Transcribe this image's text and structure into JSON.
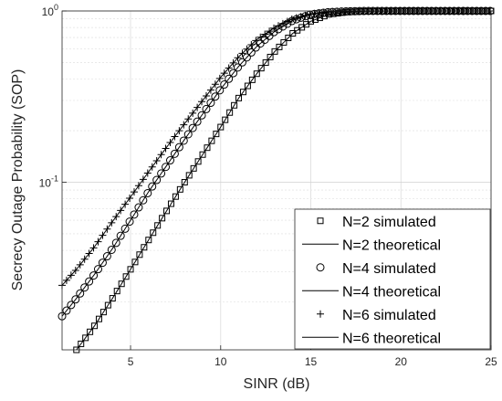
{
  "chart_data": {
    "type": "line",
    "xlabel": "SINR (dB)",
    "ylabel": "Secrecy Outage Probability (SOP)",
    "xlim": [
      1.2,
      25
    ],
    "ylim": [
      0.0105,
      1.0
    ],
    "yscale": "log",
    "grid": true,
    "legend_position": "bottom-right",
    "x_ticks": [
      "5",
      "10",
      "15",
      "20",
      "25"
    ],
    "y_ticks": [
      {
        "value": 0.1,
        "base": "10",
        "exp": "-1"
      },
      {
        "value": 1.0,
        "base": "10",
        "exp": "0"
      }
    ],
    "series": [
      {
        "name": "N=2 simulated",
        "marker": "square",
        "line": false,
        "key": "n2"
      },
      {
        "name": "N=2 theoretical",
        "marker": "none",
        "line": true,
        "key": "n2"
      },
      {
        "name": "N=4 simulated",
        "marker": "circle",
        "line": false,
        "key": "n4"
      },
      {
        "name": "N=4 theoretical",
        "marker": "none",
        "line": true,
        "key": "n4"
      },
      {
        "name": "N=6 simulated",
        "marker": "plus",
        "line": false,
        "key": "n6"
      },
      {
        "name": "N=6 theoretical",
        "marker": "none",
        "line": true,
        "key": "n6"
      }
    ],
    "curves": {
      "n2": {
        "x": [
          2.0,
          3,
          4,
          5,
          6,
          7,
          8,
          9,
          10,
          11,
          12,
          13,
          14,
          15,
          16,
          17,
          18,
          20,
          25
        ],
        "y": [
          0.0105,
          0.0145,
          0.021,
          0.031,
          0.046,
          0.068,
          0.1,
          0.145,
          0.21,
          0.31,
          0.43,
          0.58,
          0.74,
          0.87,
          0.955,
          0.985,
          0.995,
          1.0,
          1.0
        ]
      },
      "n4": {
        "x": [
          1.2,
          2,
          3,
          4,
          5,
          6,
          7,
          8,
          9,
          10,
          11,
          12,
          13,
          14,
          15,
          16,
          17,
          18,
          20,
          25
        ],
        "y": [
          0.0165,
          0.021,
          0.029,
          0.041,
          0.06,
          0.088,
          0.125,
          0.178,
          0.25,
          0.35,
          0.475,
          0.62,
          0.76,
          0.88,
          0.955,
          0.985,
          0.995,
          1.0,
          1.0,
          1.0
        ]
      },
      "n6": {
        "x": [
          1.2,
          2,
          3,
          4,
          5,
          6,
          7,
          8,
          9,
          10,
          11,
          12,
          13,
          14,
          15,
          16,
          17,
          18,
          20,
          25
        ],
        "y": [
          0.025,
          0.031,
          0.042,
          0.059,
          0.082,
          0.115,
          0.16,
          0.22,
          0.3,
          0.41,
          0.54,
          0.68,
          0.8,
          0.9,
          0.96,
          0.99,
          0.997,
          1.0,
          1.0,
          1.0
        ]
      }
    },
    "marker_spacing_db": 0.25
  }
}
